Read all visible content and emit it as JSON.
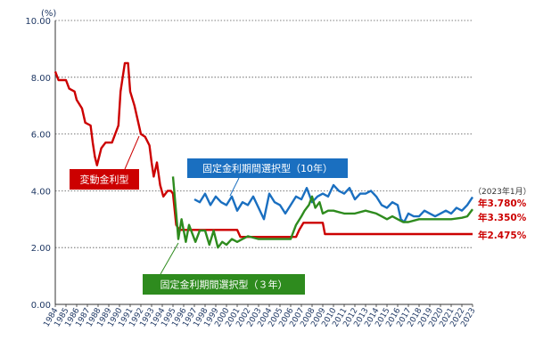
{
  "chart_data": {
    "type": "line",
    "y_unit": "(%)",
    "ylim": [
      0,
      10
    ],
    "y_ticks": [
      "0.00",
      "2.00",
      "4.00",
      "6.00",
      "8.00",
      "10.00"
    ],
    "x_ticks": [
      "1984",
      "1985",
      "1986",
      "1987",
      "1988",
      "1989",
      "1990",
      "1991",
      "1992",
      "1993",
      "1994",
      "1995",
      "1996",
      "1997",
      "1998",
      "1999",
      "2000",
      "2001",
      "2002",
      "2003",
      "2004",
      "2005",
      "2006",
      "2007",
      "2008",
      "2009",
      "2010",
      "2011",
      "2012",
      "2013",
      "2014",
      "2015",
      "2016",
      "2017",
      "2018",
      "2019",
      "2020",
      "2021",
      "2022",
      "2023"
    ],
    "xlim": [
      1984,
      2023
    ],
    "grid": "horizontal dotted",
    "date_note": "（2023年1月）",
    "series": [
      {
        "name": "変動金利型",
        "color": "#cc0000",
        "end_label": "年2.475%",
        "points": [
          [
            1984,
            8.2
          ],
          [
            1984.3,
            7.9
          ],
          [
            1985,
            7.9
          ],
          [
            1985.3,
            7.6
          ],
          [
            1985.8,
            7.5
          ],
          [
            1986,
            7.2
          ],
          [
            1986.5,
            6.9
          ],
          [
            1986.8,
            6.4
          ],
          [
            1987.3,
            6.3
          ],
          [
            1987.5,
            5.7
          ],
          [
            1987.7,
            5.2
          ],
          [
            1987.9,
            4.9
          ],
          [
            1988.3,
            5.5
          ],
          [
            1988.7,
            5.7
          ],
          [
            1989.3,
            5.7
          ],
          [
            1989.6,
            6.0
          ],
          [
            1989.9,
            6.3
          ],
          [
            1990.1,
            7.5
          ],
          [
            1990.3,
            8.0
          ],
          [
            1990.5,
            8.5
          ],
          [
            1990.8,
            8.5
          ],
          [
            1991.0,
            7.5
          ],
          [
            1991.4,
            7.0
          ],
          [
            1991.7,
            6.5
          ],
          [
            1992.0,
            6.0
          ],
          [
            1992.4,
            5.9
          ],
          [
            1992.8,
            5.6
          ],
          [
            1993.0,
            5.0
          ],
          [
            1993.2,
            4.5
          ],
          [
            1993.5,
            5.0
          ],
          [
            1993.8,
            4.2
          ],
          [
            1994.1,
            3.8
          ],
          [
            1994.5,
            4.0
          ],
          [
            1994.8,
            4.0
          ],
          [
            1995.0,
            3.9
          ],
          [
            1995.3,
            2.8
          ],
          [
            1995.6,
            2.625
          ],
          [
            2001.0,
            2.625
          ],
          [
            2001.3,
            2.375
          ],
          [
            2006.5,
            2.375
          ],
          [
            2006.8,
            2.625
          ],
          [
            2007.2,
            2.875
          ],
          [
            2009.0,
            2.875
          ],
          [
            2009.2,
            2.475
          ],
          [
            2023,
            2.475
          ]
        ]
      },
      {
        "name": "固定金利期間選択型（10年）",
        "color": "#1a6fc0",
        "end_label": "年3.780%",
        "points": [
          [
            1997.0,
            3.7
          ],
          [
            1997.5,
            3.6
          ],
          [
            1998.0,
            3.9
          ],
          [
            1998.5,
            3.5
          ],
          [
            1999.0,
            3.8
          ],
          [
            1999.5,
            3.6
          ],
          [
            2000.0,
            3.5
          ],
          [
            2000.5,
            3.8
          ],
          [
            2001.0,
            3.3
          ],
          [
            2001.5,
            3.6
          ],
          [
            2002.0,
            3.5
          ],
          [
            2002.5,
            3.8
          ],
          [
            2003.0,
            3.4
          ],
          [
            2003.5,
            3.0
          ],
          [
            2004.0,
            3.9
          ],
          [
            2004.5,
            3.6
          ],
          [
            2005.0,
            3.5
          ],
          [
            2005.5,
            3.2
          ],
          [
            2006.0,
            3.5
          ],
          [
            2006.5,
            3.8
          ],
          [
            2007.0,
            3.7
          ],
          [
            2007.5,
            4.1
          ],
          [
            2008.0,
            3.6
          ],
          [
            2008.5,
            3.8
          ],
          [
            2009.0,
            3.9
          ],
          [
            2009.5,
            3.8
          ],
          [
            2010.0,
            4.2
          ],
          [
            2010.5,
            4.0
          ],
          [
            2011.0,
            3.9
          ],
          [
            2011.5,
            4.1
          ],
          [
            2012.0,
            3.7
          ],
          [
            2012.5,
            3.9
          ],
          [
            2013.0,
            3.9
          ],
          [
            2013.5,
            4.0
          ],
          [
            2014.0,
            3.8
          ],
          [
            2014.5,
            3.5
          ],
          [
            2015.0,
            3.4
          ],
          [
            2015.5,
            3.6
          ],
          [
            2016.0,
            3.5
          ],
          [
            2016.3,
            3.0
          ],
          [
            2016.6,
            2.9
          ],
          [
            2017.0,
            3.2
          ],
          [
            2017.5,
            3.1
          ],
          [
            2018.0,
            3.1
          ],
          [
            2018.5,
            3.3
          ],
          [
            2019.0,
            3.2
          ],
          [
            2019.5,
            3.1
          ],
          [
            2020.0,
            3.2
          ],
          [
            2020.5,
            3.3
          ],
          [
            2021.0,
            3.2
          ],
          [
            2021.5,
            3.4
          ],
          [
            2022.0,
            3.3
          ],
          [
            2022.5,
            3.5
          ],
          [
            2023,
            3.78
          ]
        ]
      },
      {
        "name": "固定金利期間選択型（３年）",
        "color": "#2e8b1e",
        "end_label": "年3.350%",
        "points": [
          [
            1995.0,
            4.5
          ],
          [
            1995.3,
            3.2
          ],
          [
            1995.5,
            2.3
          ],
          [
            1995.8,
            3.0
          ],
          [
            1996.2,
            2.2
          ],
          [
            1996.5,
            2.8
          ],
          [
            1996.8,
            2.5
          ],
          [
            1997.1,
            2.2
          ],
          [
            1997.5,
            2.6
          ],
          [
            1998.0,
            2.6
          ],
          [
            1998.4,
            2.1
          ],
          [
            1998.8,
            2.6
          ],
          [
            1999.2,
            2.0
          ],
          [
            1999.6,
            2.2
          ],
          [
            2000.0,
            2.1
          ],
          [
            2000.5,
            2.3
          ],
          [
            2001.0,
            2.2
          ],
          [
            2001.5,
            2.3
          ],
          [
            2002.0,
            2.4
          ],
          [
            2003.0,
            2.3
          ],
          [
            2004.0,
            2.3
          ],
          [
            2005.0,
            2.3
          ],
          [
            2006.0,
            2.3
          ],
          [
            2006.5,
            2.8
          ],
          [
            2007.0,
            3.1
          ],
          [
            2007.3,
            3.3
          ],
          [
            2007.7,
            3.5
          ],
          [
            2008.0,
            3.8
          ],
          [
            2008.3,
            3.4
          ],
          [
            2008.7,
            3.6
          ],
          [
            2009.0,
            3.2
          ],
          [
            2009.5,
            3.3
          ],
          [
            2010.0,
            3.3
          ],
          [
            2011.0,
            3.2
          ],
          [
            2012.0,
            3.2
          ],
          [
            2013.0,
            3.3
          ],
          [
            2014.0,
            3.2
          ],
          [
            2014.5,
            3.1
          ],
          [
            2015.0,
            3.0
          ],
          [
            2015.5,
            3.1
          ],
          [
            2016.0,
            3.0
          ],
          [
            2016.5,
            2.9
          ],
          [
            2017.0,
            2.9
          ],
          [
            2018.0,
            3.0
          ],
          [
            2019.0,
            3.0
          ],
          [
            2020.0,
            3.0
          ],
          [
            2021.0,
            3.0
          ],
          [
            2022.0,
            3.05
          ],
          [
            2022.5,
            3.1
          ],
          [
            2023,
            3.35
          ]
        ]
      }
    ]
  }
}
